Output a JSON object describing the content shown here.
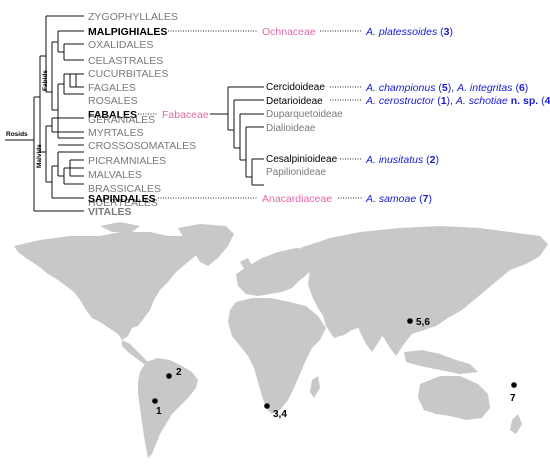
{
  "clades": {
    "rosids": "Rosids",
    "fabids": "Fabids",
    "malvids": "Malvids"
  },
  "orders": [
    {
      "name": "ZYGOPHYLLALES",
      "style": "grey"
    },
    {
      "name": "MALPIGHIALES",
      "style": "bold"
    },
    {
      "name": "OXALIDALES",
      "style": "grey"
    },
    {
      "name": "CELASTRALES",
      "style": "grey"
    },
    {
      "name": "CUCURBITALES",
      "style": "grey"
    },
    {
      "name": "FAGALES",
      "style": "grey"
    },
    {
      "name": "ROSALES",
      "style": "grey"
    },
    {
      "name": "FABALES",
      "style": "bold"
    },
    {
      "name": "GERANIALES",
      "style": "grey"
    },
    {
      "name": "MYRTALES",
      "style": "grey"
    },
    {
      "name": "CROSSOSOMATALES",
      "style": "grey"
    },
    {
      "name": "PICRAMNIALES",
      "style": "grey"
    },
    {
      "name": "MALVALES",
      "style": "grey"
    },
    {
      "name": "BRASSICALES",
      "style": "grey"
    },
    {
      "name": "HUERTEALES",
      "style": "grey"
    },
    {
      "name": "SAPINDALES",
      "style": "bold"
    },
    {
      "name": "VITALES",
      "style": "bold-grey"
    }
  ],
  "families": {
    "ochnaceae": "Ochnaceae",
    "fabaceae": "Fabaceae",
    "anacardiaceae": "Anacardiaceae"
  },
  "subfamilies": [
    {
      "name": "Cercidoideae",
      "style": "black"
    },
    {
      "name": "Detarioideae",
      "style": "black"
    },
    {
      "name": "Duparquetoideae",
      "style": "grey"
    },
    {
      "name": "Dialioideae",
      "style": "grey"
    },
    {
      "name": "Cesalpinioideae",
      "style": "black"
    },
    {
      "name": "Papilionideae",
      "style": "grey"
    }
  ],
  "species": {
    "platessoides": {
      "name": "A. platessoides",
      "num": "3"
    },
    "championus": {
      "name": "A. championus",
      "num": "5"
    },
    "integritas": {
      "name": "A. integritas",
      "num": "6"
    },
    "cerostructor": {
      "name": "A. cerostructor",
      "num": "1"
    },
    "schotiae": {
      "name": "A. schotiae",
      "nsp": "n. sp.",
      "num": "4"
    },
    "inusitatus": {
      "name": "A. inusitatus",
      "num": "2"
    },
    "samoae": {
      "name": "A. samoae",
      "num": "7"
    }
  },
  "map_locations": [
    {
      "label": "1",
      "region": "southern Brazil"
    },
    {
      "label": "2",
      "region": "eastern Brazil"
    },
    {
      "label": "3,4",
      "region": "South Africa"
    },
    {
      "label": "5,6",
      "region": "southern China"
    },
    {
      "label": "7",
      "region": "Samoa"
    }
  ],
  "colors": {
    "family": "#e06aa6",
    "species": "#1a1ad0",
    "grey_text": "#7a7a7a",
    "land": "#c8c8c8"
  }
}
